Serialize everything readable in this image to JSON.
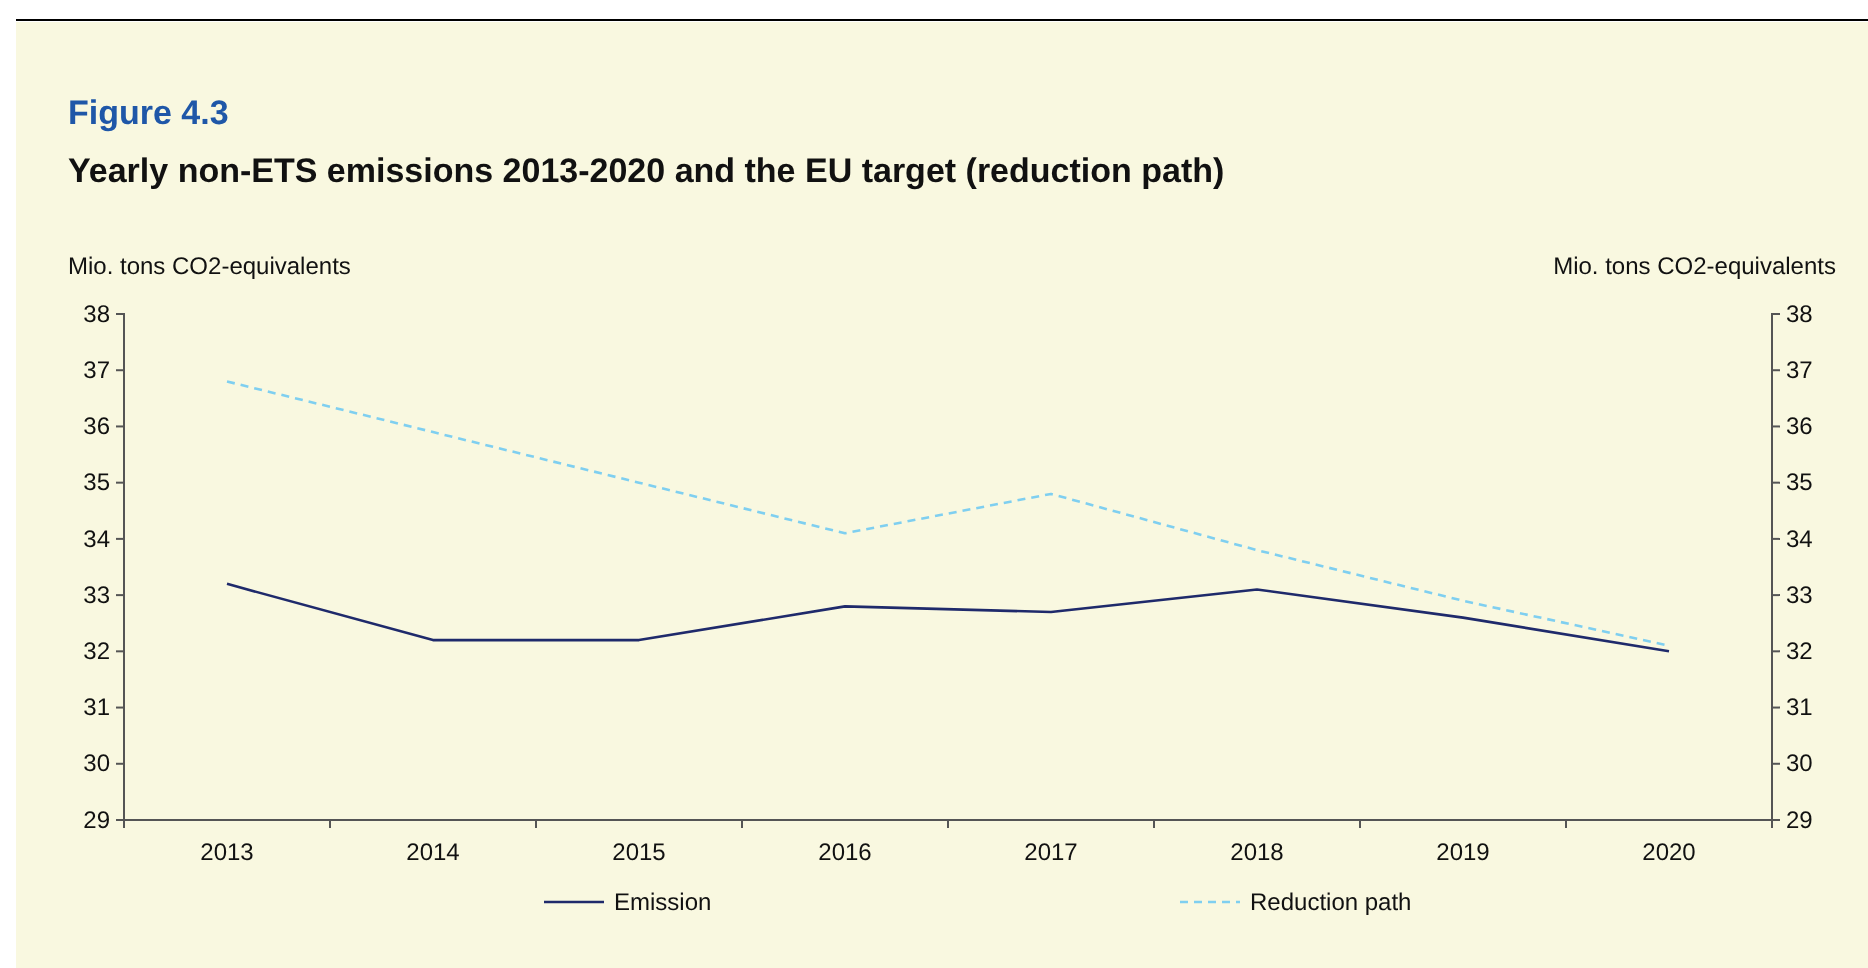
{
  "chart_data": {
    "type": "line",
    "title": "Figure 4.3",
    "subtitle": "Yearly non-ETS emissions 2013-2020 and the EU target (reduction path)",
    "ylabel": "Mio. tons CO2-equivalents",
    "y2label": "Mio. tons CO2-equivalents",
    "categories": [
      "2013",
      "2014",
      "2015",
      "2016",
      "2017",
      "2018",
      "2019",
      "2020"
    ],
    "series": [
      {
        "name": "Emission",
        "color": "#1f2a6b",
        "line_style": "solid",
        "values": [
          33.2,
          32.2,
          32.2,
          32.8,
          32.7,
          33.1,
          32.6,
          32.0
        ]
      },
      {
        "name": "Reduction path",
        "color": "#7fcff0",
        "line_style": "dashed",
        "values": [
          36.8,
          35.9,
          35.0,
          34.1,
          34.8,
          33.8,
          32.9,
          32.1
        ]
      }
    ],
    "ylim": [
      29,
      38
    ],
    "yticks": [
      29,
      30,
      31,
      32,
      33,
      34,
      35,
      36,
      37,
      38
    ],
    "y2lim": [
      29,
      38
    ],
    "y2ticks": [
      29,
      30,
      31,
      32,
      33,
      34,
      35,
      36,
      37,
      38
    ],
    "legend": "bottom",
    "grid": false,
    "marker": "none"
  }
}
